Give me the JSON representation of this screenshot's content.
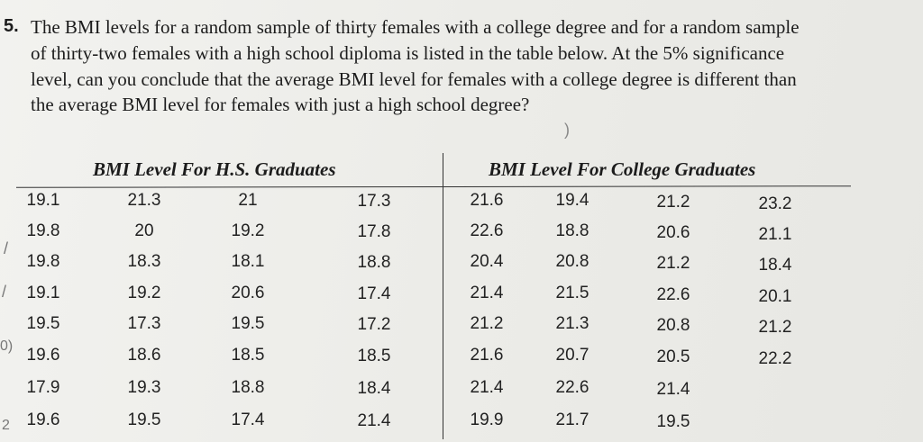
{
  "question": {
    "number": "5.",
    "lines": [
      "The BMI levels for a random sample of thirty females with a college degree and for a random sample",
      "of thirty-two females with a high school diploma is listed in the table below. At the 5% significance",
      "level, can you conclude that the average BMI level for females with a college degree is different than",
      "the average BMI level for females with just a high school degree?"
    ]
  },
  "table": {
    "hs_header": "BMI Level For H.S. Graduates",
    "college_header": "BMI Level For College Graduates",
    "hs_rows": [
      [
        "19.1",
        "21.3",
        "21",
        "17.3"
      ],
      [
        "19.8",
        "20",
        "19.2",
        "17.8"
      ],
      [
        "19.8",
        "18.3",
        "18.1",
        "18.8"
      ],
      [
        "19.1",
        "19.2",
        "20.6",
        "17.4"
      ],
      [
        "19.5",
        "17.3",
        "19.5",
        "17.2"
      ],
      [
        "19.6",
        "18.6",
        "18.5",
        "18.5"
      ],
      [
        "17.9",
        "19.3",
        "18.8",
        "18.4"
      ],
      [
        "19.6",
        "19.5",
        "17.4",
        "21.4"
      ]
    ],
    "college_rows": [
      [
        "21.6",
        "19.4",
        "21.2",
        "23.2"
      ],
      [
        "22.6",
        "18.8",
        "20.6",
        "21.1"
      ],
      [
        "20.4",
        "20.8",
        "21.2",
        "18.4"
      ],
      [
        "21.4",
        "21.5",
        "22.6",
        "20.1"
      ],
      [
        "21.2",
        "21.3",
        "20.8",
        "21.2"
      ],
      [
        "21.6",
        "20.7",
        "20.5",
        "22.2"
      ],
      [
        "21.4",
        "22.6",
        "21.4",
        ""
      ],
      [
        "19.9",
        "21.7",
        "19.5",
        ""
      ]
    ]
  },
  "margin_marks": [
    "/",
    "/",
    "0)",
    "2"
  ],
  "annotation": ")"
}
